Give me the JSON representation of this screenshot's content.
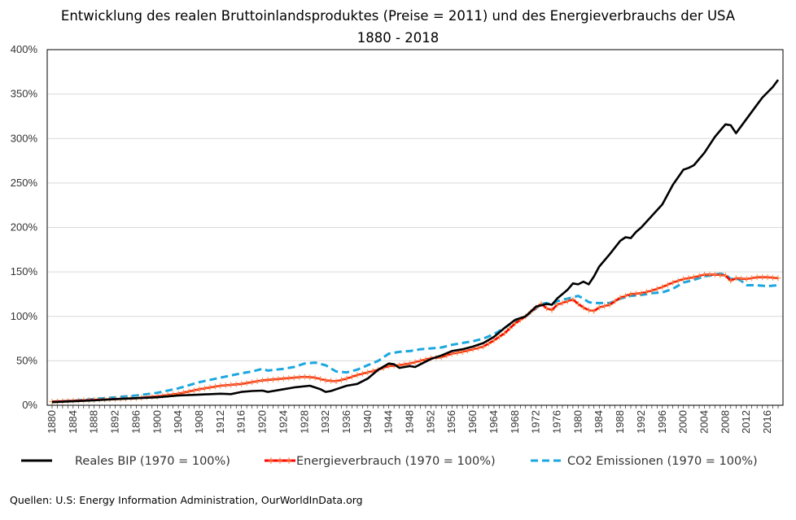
{
  "chart_data": {
    "type": "line",
    "title": "Entwicklung des realen Bruttoinlandsproduktes  (Preise  = 2011) und des Energieverbrauchs  der USA",
    "subtitle": "1880 - 2018",
    "xlabel": "",
    "ylabel": "",
    "xlim": [
      1880,
      2018
    ],
    "ylim": [
      0,
      400
    ],
    "y_ticks": [
      "0%",
      "50%",
      "100%",
      "150%",
      "200%",
      "250%",
      "300%",
      "350%",
      "400%"
    ],
    "x_ticks": [
      "1880",
      "1884",
      "1888",
      "1892",
      "1896",
      "1900",
      "1904",
      "1908",
      "1912",
      "1916",
      "1920",
      "1924",
      "1928",
      "1932",
      "1936",
      "1940",
      "1944",
      "1948",
      "1952",
      "1956",
      "1960",
      "1964",
      "1968",
      "1972",
      "1976",
      "1980",
      "1984",
      "1988",
      "1992",
      "1996",
      "2000",
      "2004",
      "2008",
      "2012",
      "2016"
    ],
    "grid": true,
    "legend_position": "bottom",
    "series": [
      {
        "name": "Reales BIP (1970 = 100%)",
        "color": "#000000",
        "style": "solid",
        "x": [
          1880,
          1884,
          1888,
          1892,
          1896,
          1900,
          1904,
          1908,
          1912,
          1914,
          1916,
          1918,
          1920,
          1921,
          1924,
          1926,
          1929,
          1930,
          1931,
          1932,
          1933,
          1934,
          1936,
          1938,
          1940,
          1942,
          1944,
          1945,
          1946,
          1948,
          1949,
          1950,
          1952,
          1954,
          1956,
          1958,
          1960,
          1962,
          1964,
          1966,
          1968,
          1970,
          1972,
          1974,
          1975,
          1976,
          1978,
          1979,
          1980,
          1981,
          1982,
          1983,
          1984,
          1986,
          1988,
          1989,
          1990,
          1991,
          1992,
          1994,
          1996,
          1998,
          2000,
          2001,
          2002,
          2004,
          2006,
          2007,
          2008,
          2009,
          2010,
          2012,
          2014,
          2015,
          2016,
          2017,
          2018
        ],
        "values": [
          3.5,
          4.5,
          5.5,
          7,
          8,
          9,
          11,
          12,
          13,
          12.5,
          15,
          16,
          16.5,
          15,
          18,
          20,
          22,
          20,
          18,
          15,
          16,
          18,
          22,
          24,
          30,
          40,
          47,
          46,
          42,
          44,
          43,
          46,
          52,
          56,
          61,
          63,
          66,
          70,
          77,
          87,
          96,
          100,
          111,
          114,
          113,
          120,
          130,
          137,
          136,
          139,
          136,
          145,
          156,
          170,
          185,
          189,
          188,
          195,
          200,
          213,
          226,
          248,
          265,
          267,
          270,
          284,
          302,
          309,
          316,
          315,
          306,
          322,
          338,
          346,
          352,
          358,
          366
        ]
      },
      {
        "name": "Energieverbrauch  (1970 = 100%)",
        "color": "#ff0000",
        "style": "solid-plus",
        "x": [
          1880,
          1884,
          1888,
          1892,
          1896,
          1900,
          1904,
          1908,
          1912,
          1916,
          1920,
          1924,
          1928,
          1930,
          1932,
          1934,
          1936,
          1938,
          1940,
          1942,
          1944,
          1946,
          1948,
          1950,
          1952,
          1954,
          1956,
          1958,
          1960,
          1962,
          1964,
          1966,
          1968,
          1970,
          1972,
          1973,
          1974,
          1975,
          1976,
          1978,
          1979,
          1980,
          1981,
          1982,
          1983,
          1984,
          1986,
          1988,
          1990,
          1992,
          1994,
          1996,
          1998,
          2000,
          2002,
          2004,
          2006,
          2008,
          2009,
          2010,
          2012,
          2014,
          2016,
          2018
        ],
        "values": [
          4,
          5,
          6,
          7,
          8,
          10,
          13,
          18,
          22,
          24,
          28,
          30,
          32,
          31,
          28,
          27,
          30,
          34,
          37,
          40,
          44,
          45,
          47,
          50,
          53,
          54,
          58,
          60,
          63,
          66,
          73,
          81,
          92,
          100,
          110,
          114,
          109,
          107,
          113,
          117,
          119,
          114,
          110,
          107,
          106,
          110,
          113,
          121,
          125,
          126,
          129,
          133,
          138,
          142,
          144,
          147,
          147,
          146,
          140,
          143,
          142,
          144,
          144,
          143
        ]
      },
      {
        "name": "CO2 Emissionen  (1970 = 100%)",
        "color": "#1aa7e0",
        "style": "dashed",
        "x": [
          1880,
          1884,
          1888,
          1892,
          1896,
          1900,
          1904,
          1908,
          1912,
          1916,
          1918,
          1920,
          1921,
          1924,
          1926,
          1928,
          1930,
          1932,
          1934,
          1936,
          1938,
          1940,
          1942,
          1944,
          1946,
          1948,
          1950,
          1952,
          1954,
          1956,
          1958,
          1960,
          1962,
          1964,
          1966,
          1968,
          1970,
          1972,
          1973,
          1974,
          1975,
          1976,
          1978,
          1980,
          1981,
          1982,
          1983,
          1984,
          1986,
          1988,
          1990,
          1992,
          1994,
          1996,
          1998,
          2000,
          2002,
          2004,
          2006,
          2007,
          2008,
          2009,
          2010,
          2011,
          2012,
          2014,
          2016,
          2018
        ],
        "values": [
          4,
          5,
          7,
          9,
          11,
          14,
          19,
          26,
          31,
          36,
          38,
          41,
          39,
          41,
          43,
          47,
          48,
          45,
          38,
          37,
          40,
          45,
          50,
          58,
          60,
          61,
          63,
          64,
          65,
          68,
          70,
          72,
          75,
          80,
          87,
          95,
          100,
          109,
          114,
          115,
          113,
          117,
          120,
          123,
          120,
          116,
          115,
          115,
          115,
          120,
          123,
          124,
          126,
          127,
          131,
          138,
          141,
          145,
          147,
          148,
          147,
          142,
          143,
          140,
          135,
          135,
          134,
          135
        ]
      }
    ]
  },
  "sources": "Quellen: U.S: Energy Information Administration, OurWorldInData.org"
}
